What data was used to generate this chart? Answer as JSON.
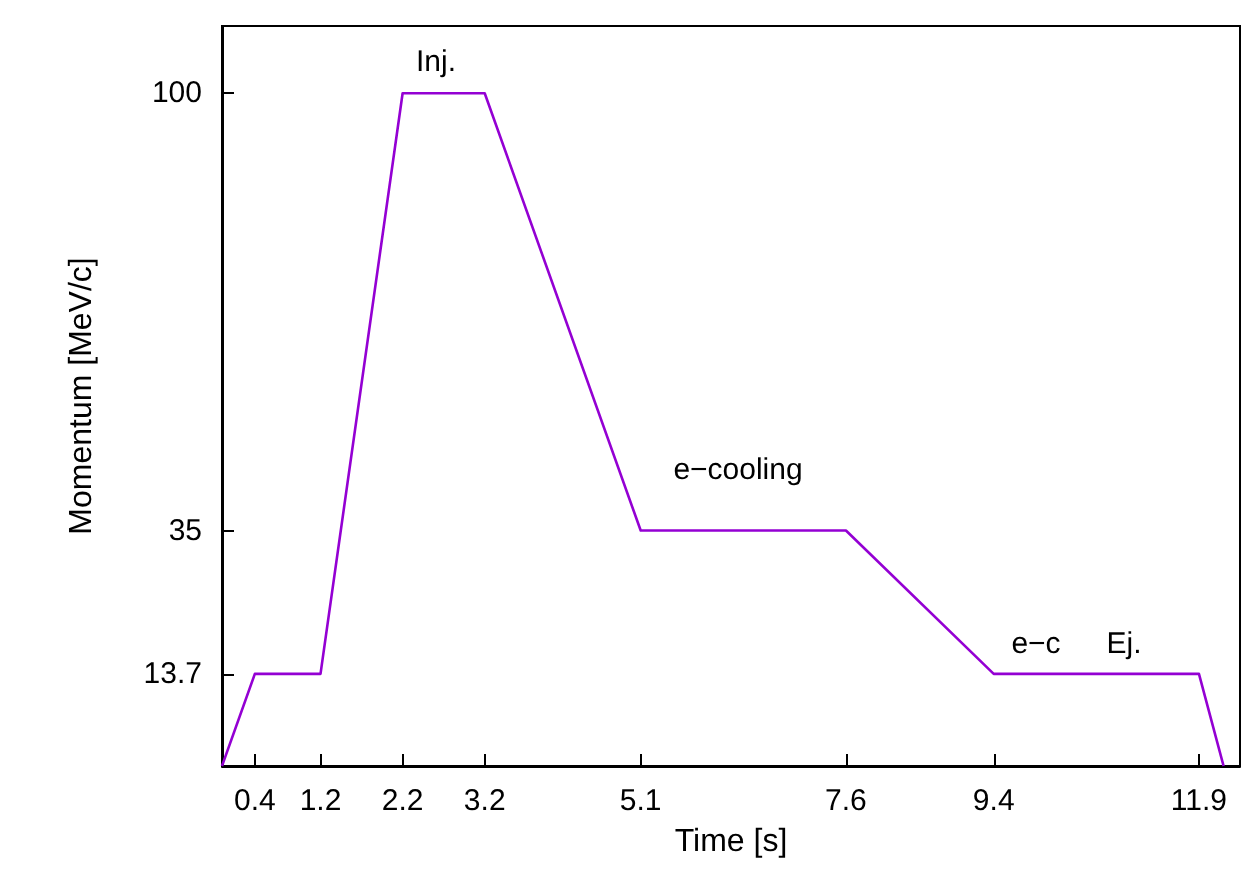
{
  "chart_data": {
    "type": "line",
    "xlabel": "Time [s]",
    "ylabel": "Momentum [MeV/c]",
    "x": [
      0,
      0.4,
      1.2,
      2.2,
      3.2,
      5.1,
      7.6,
      9.4,
      11.9,
      12.2
    ],
    "series": [
      {
        "color": "#9400d3",
        "values": [
          0,
          13.7,
          13.7,
          100,
          100,
          35,
          35,
          13.7,
          13.7,
          0
        ]
      }
    ],
    "xlim": [
      0,
      12.4
    ],
    "xticks": [
      0.4,
      1.2,
      2.2,
      3.2,
      5.1,
      7.6,
      9.4,
      11.9
    ],
    "ylim": [
      0,
      110
    ],
    "yticks": [
      13.7,
      35,
      100
    ],
    "grid": false,
    "marker": "none",
    "line_style": "solid",
    "annotations": [
      "Inj.",
      "e−cooling",
      "e−c",
      "Ej."
    ]
  }
}
